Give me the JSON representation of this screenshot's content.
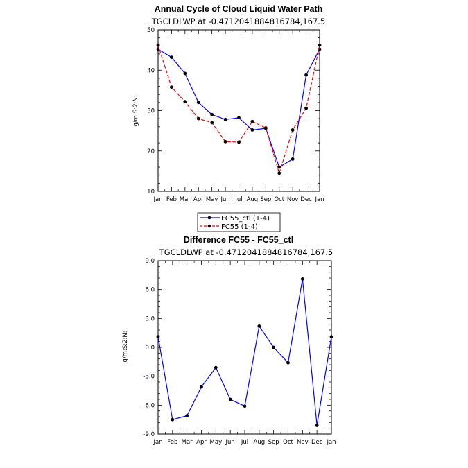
{
  "colors": {
    "ctl": "#0000ff",
    "fc55": "#ff0000",
    "diff": "#0000ff"
  },
  "chart_data": [
    {
      "type": "line",
      "title": "Annual Cycle of Cloud Liquid Water Path",
      "subtitle": "TGCLDLWP at -0.4712041884816784,167.5",
      "ylabel": "g/m:S:2:N:",
      "categories": [
        "Jan",
        "Feb",
        "Mar",
        "Apr",
        "May",
        "Jun",
        "Jul",
        "Aug",
        "Sep",
        "Oct",
        "Nov",
        "Dec",
        "Jan"
      ],
      "ylim": [
        10,
        50
      ],
      "yticks": [
        10,
        20,
        30,
        40,
        50
      ],
      "ytick_labels": [
        "10",
        "20",
        "30",
        "40",
        "50"
      ],
      "series": [
        {
          "name": "FC55_ctl (1-4)",
          "style": "solid",
          "color": "#0000ff",
          "values": [
            45.2,
            43.2,
            39.2,
            32.0,
            29.0,
            27.8,
            28.2,
            25.2,
            25.6,
            16.0,
            18.0,
            38.8,
            45.2
          ]
        },
        {
          "name": "FC55 (1-4)",
          "style": "dashed",
          "color": "#ff0000",
          "values": [
            46.2,
            35.8,
            32.2,
            28.0,
            27.0,
            22.3,
            22.2,
            27.3,
            25.7,
            14.5,
            25.2,
            30.6,
            46.2
          ]
        }
      ],
      "legend": "below"
    },
    {
      "type": "line",
      "title": "Difference FC55 - FC55_ctl",
      "subtitle": "TGCLDLWP at -0.4712041884816784,167.5",
      "ylabel": "g/m:S:2:N:",
      "categories": [
        "Jan",
        "Feb",
        "Mar",
        "Apr",
        "May",
        "Jun",
        "Jul",
        "Aug",
        "Sep",
        "Oct",
        "Nov",
        "Dec",
        "Jan"
      ],
      "ylim": [
        -9,
        9
      ],
      "yticks": [
        -9,
        -6,
        -3,
        0,
        3,
        6,
        9
      ],
      "ytick_labels": [
        "-9.0",
        "-6.0",
        "-3.0",
        "0.0",
        "3.0",
        "6.0",
        "9.0"
      ],
      "series": [
        {
          "name": "",
          "style": "solid",
          "color": "#0000ff",
          "values": [
            1.1,
            -7.5,
            -7.1,
            -4.1,
            -2.1,
            -5.4,
            -6.1,
            2.2,
            0.0,
            -1.6,
            7.1,
            -8.1,
            1.1
          ]
        }
      ]
    }
  ]
}
